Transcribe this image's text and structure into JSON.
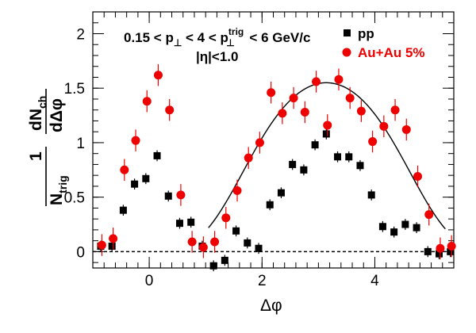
{
  "chart_data": {
    "type": "scatter",
    "xlabel": "Δφ",
    "ylabel": {
      "numerator": "dN",
      "numerator_sub": "ch",
      "lead": "1",
      "denominator": "N",
      "denominator_sub": "trig",
      "differential": "dΔφ"
    },
    "xlim": [
      -1.0,
      5.4
    ],
    "ylim": [
      -0.15,
      2.2
    ],
    "x_ticks": [
      0,
      2,
      4
    ],
    "x_tick_labels": [
      "0",
      "2",
      "4"
    ],
    "y_ticks": [
      0,
      0.5,
      1,
      1.5,
      2
    ],
    "y_tick_labels": [
      "0",
      "0.5",
      "1",
      "1.5",
      "2"
    ],
    "annotation": {
      "line1_prefix": "0.15 < p",
      "line1_sub1": "⊥",
      "line1_mid": " < 4 < p",
      "line1_sup2": "trig",
      "line1_sub2": "⊥",
      "line1_suffix": " < 6 GeV/c",
      "line2": "|η|<1.0"
    },
    "legend_position": "top-right",
    "zero_line": "dashed",
    "series": [
      {
        "name": "pp",
        "marker": "square",
        "color": "#000000",
        "x": [
          -0.85,
          -0.65,
          -0.45,
          -0.25,
          -0.05,
          0.15,
          0.35,
          0.55,
          0.75,
          0.95,
          1.15,
          1.35,
          1.55,
          1.75,
          1.95,
          2.15,
          2.35,
          2.55,
          2.75,
          2.95,
          3.15,
          3.35,
          3.55,
          3.75,
          3.95,
          4.15,
          4.35,
          4.55,
          4.75,
          4.95,
          5.15,
          5.35
        ],
        "y": [
          0.05,
          0.05,
          0.38,
          0.62,
          0.67,
          0.88,
          0.51,
          0.26,
          0.27,
          0.05,
          -0.13,
          -0.08,
          0.19,
          0.08,
          0.03,
          0.43,
          0.54,
          0.8,
          0.75,
          0.98,
          1.08,
          0.87,
          0.87,
          0.79,
          0.52,
          0.23,
          0.18,
          0.25,
          0.22,
          0.0,
          -0.02,
          0.0
        ],
        "err": [
          0.05,
          0.05,
          0.05,
          0.05,
          0.05,
          0.05,
          0.05,
          0.05,
          0.05,
          0.05,
          0.05,
          0.05,
          0.05,
          0.05,
          0.05,
          0.05,
          0.05,
          0.05,
          0.05,
          0.05,
          0.05,
          0.05,
          0.05,
          0.05,
          0.05,
          0.05,
          0.05,
          0.05,
          0.05,
          0.05,
          0.05,
          0.05
        ]
      },
      {
        "name": "Au+Au 5%",
        "marker": "circle",
        "color": "#ee0000",
        "x": [
          -0.85,
          -0.65,
          -0.45,
          -0.25,
          -0.05,
          0.15,
          0.35,
          0.55,
          0.75,
          0.95,
          1.15,
          1.35,
          1.55,
          1.75,
          1.95,
          2.15,
          2.35,
          2.55,
          2.75,
          2.95,
          3.15,
          3.35,
          3.55,
          3.75,
          3.95,
          4.15,
          4.35,
          4.55,
          4.75,
          4.95,
          5.15,
          5.35
        ],
        "y": [
          0.06,
          0.12,
          0.75,
          1.02,
          1.38,
          1.62,
          1.3,
          0.52,
          0.09,
          0.04,
          0.09,
          0.31,
          0.56,
          0.86,
          1.0,
          1.46,
          1.27,
          1.41,
          1.28,
          1.56,
          1.16,
          1.58,
          1.41,
          1.29,
          1.01,
          1.15,
          1.3,
          1.12,
          0.69,
          0.34,
          0.03,
          0.05
        ],
        "err": [
          0.1,
          0.1,
          0.1,
          0.1,
          0.1,
          0.1,
          0.1,
          0.1,
          0.1,
          0.1,
          0.1,
          0.1,
          0.1,
          0.1,
          0.1,
          0.1,
          0.1,
          0.1,
          0.1,
          0.1,
          0.1,
          0.1,
          0.1,
          0.1,
          0.1,
          0.1,
          0.1,
          0.1,
          0.1,
          0.1,
          0.1,
          0.1
        ]
      }
    ],
    "curve": {
      "peak_x": 3.1416,
      "amplitude": 1.55,
      "x_start": 1.05,
      "x_end": 5.25
    }
  }
}
